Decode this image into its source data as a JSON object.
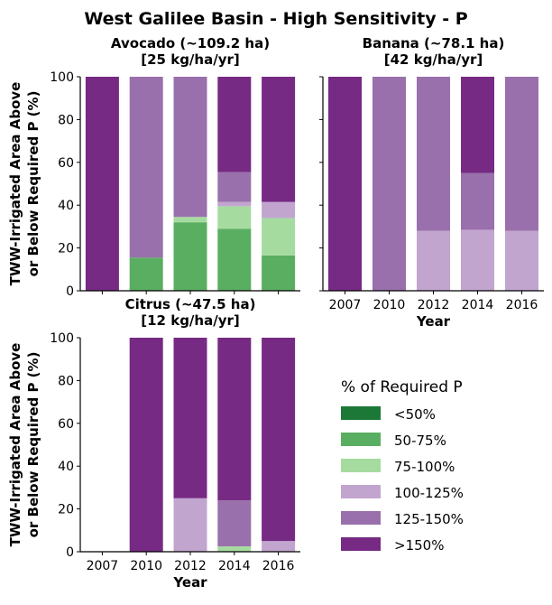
{
  "figure": {
    "title": "West Galilee Basin - High Sensitivity - P"
  },
  "legend": {
    "title": "% of Required P",
    "items": [
      {
        "label": "<50%",
        "color": "#1b7837"
      },
      {
        "label": "50-75%",
        "color": "#5aae61"
      },
      {
        "label": "75-100%",
        "color": "#a6dba0"
      },
      {
        "label": "100-125%",
        "color": "#c2a5cf"
      },
      {
        "label": "125-150%",
        "color": "#9970ab"
      },
      {
        "label": ">150%",
        "color": "#762a83"
      }
    ]
  },
  "chart_data": [
    {
      "type": "bar",
      "stacked": true,
      "title": "Avocado (~109.2 ha)\n[25 kg/ha/yr]",
      "xlabel": "",
      "ylabel": "TWW-Irrigated Area Above\nor Below Required P (%)",
      "ylim": [
        0,
        100
      ],
      "yticks": [
        0,
        20,
        40,
        60,
        80,
        100
      ],
      "categories": [
        "2007",
        "2010",
        "2012",
        "2014",
        "2016"
      ],
      "show_xticklabels": false,
      "series": [
        {
          "name": "<50%",
          "values": [
            0,
            0,
            0,
            0,
            0
          ]
        },
        {
          "name": "50-75%",
          "values": [
            0,
            15.5,
            32,
            29,
            16.5
          ]
        },
        {
          "name": "75-100%",
          "values": [
            0,
            0,
            2.5,
            10.5,
            17.5
          ]
        },
        {
          "name": "100-125%",
          "values": [
            0,
            0,
            0,
            2,
            7.5
          ]
        },
        {
          "name": "125-150%",
          "values": [
            0,
            84.5,
            65.5,
            14,
            0
          ]
        },
        {
          "name": ">150%",
          "values": [
            100,
            0,
            0,
            44.5,
            58.5
          ]
        }
      ]
    },
    {
      "type": "bar",
      "stacked": true,
      "title": "Banana (~78.1 ha)\n[42 kg/ha/yr]",
      "xlabel": "Year",
      "ylabel": "",
      "ylim": [
        0,
        100
      ],
      "yticks": [
        0,
        20,
        40,
        60,
        80,
        100
      ],
      "show_yticklabels": false,
      "categories": [
        "2007",
        "2010",
        "2012",
        "2014",
        "2016"
      ],
      "series": [
        {
          "name": "<50%",
          "values": [
            0,
            0,
            0,
            0,
            0
          ]
        },
        {
          "name": "50-75%",
          "values": [
            0,
            0,
            0,
            0,
            0
          ]
        },
        {
          "name": "75-100%",
          "values": [
            0,
            0,
            0,
            0,
            0
          ]
        },
        {
          "name": "100-125%",
          "values": [
            0,
            0,
            28,
            28.5,
            28
          ]
        },
        {
          "name": "125-150%",
          "values": [
            0,
            100,
            72,
            26.5,
            72
          ]
        },
        {
          "name": ">150%",
          "values": [
            100,
            0,
            0,
            45,
            0
          ]
        }
      ]
    },
    {
      "type": "bar",
      "stacked": true,
      "title": "Citrus (~47.5 ha)\n[12 kg/ha/yr]",
      "xlabel": "Year",
      "ylabel": "TWW-Irrigated Area Above\nor Below Required P (%)",
      "ylim": [
        0,
        100
      ],
      "yticks": [
        0,
        20,
        40,
        60,
        80,
        100
      ],
      "categories": [
        "2007",
        "2010",
        "2012",
        "2014",
        "2016"
      ],
      "series": [
        {
          "name": "<50%",
          "values": [
            0,
            0,
            0,
            0,
            0
          ]
        },
        {
          "name": "50-75%",
          "values": [
            0,
            0,
            0,
            0,
            0
          ]
        },
        {
          "name": "75-100%",
          "values": [
            0,
            0,
            0,
            2.5,
            0
          ]
        },
        {
          "name": "100-125%",
          "values": [
            0,
            0,
            25,
            0,
            5
          ]
        },
        {
          "name": "125-150%",
          "values": [
            0,
            0,
            0,
            21.5,
            0
          ]
        },
        {
          "name": ">150%",
          "values": [
            0,
            100,
            75,
            76,
            95
          ]
        }
      ]
    }
  ]
}
